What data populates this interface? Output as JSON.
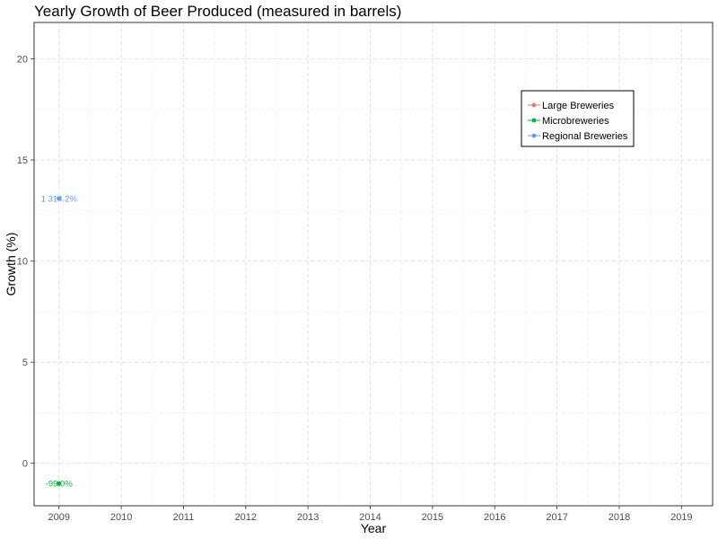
{
  "chart_data": {
    "type": "line",
    "title": "Yearly Growth of Beer Produced (measured in barrels)",
    "xlabel": "Year",
    "ylabel": "Growth (%)",
    "x_ticks": [
      "2009",
      "2010",
      "2011",
      "2012",
      "2013",
      "2014",
      "2015",
      "2016",
      "2017",
      "2018",
      "2019"
    ],
    "y_ticks": [
      "0",
      "5",
      "10",
      "15",
      "20"
    ],
    "xlim": [
      2008.6,
      2019.5
    ],
    "ylim": [
      -2.1,
      21.8
    ],
    "grid": true,
    "legend_position": "top-right",
    "series": [
      {
        "name": "Large Breweries",
        "color": "#F8766D",
        "points": []
      },
      {
        "name": "Microbreweries",
        "color": "#00BA38",
        "points": [
          {
            "x": 2009,
            "y": -1.0,
            "label": "-99.0%"
          }
        ]
      },
      {
        "name": "Regional Breweries",
        "color": "#619CFF",
        "points": [
          {
            "x": 2009,
            "y": 13.1,
            "label": "1 314.2%"
          }
        ]
      }
    ]
  }
}
